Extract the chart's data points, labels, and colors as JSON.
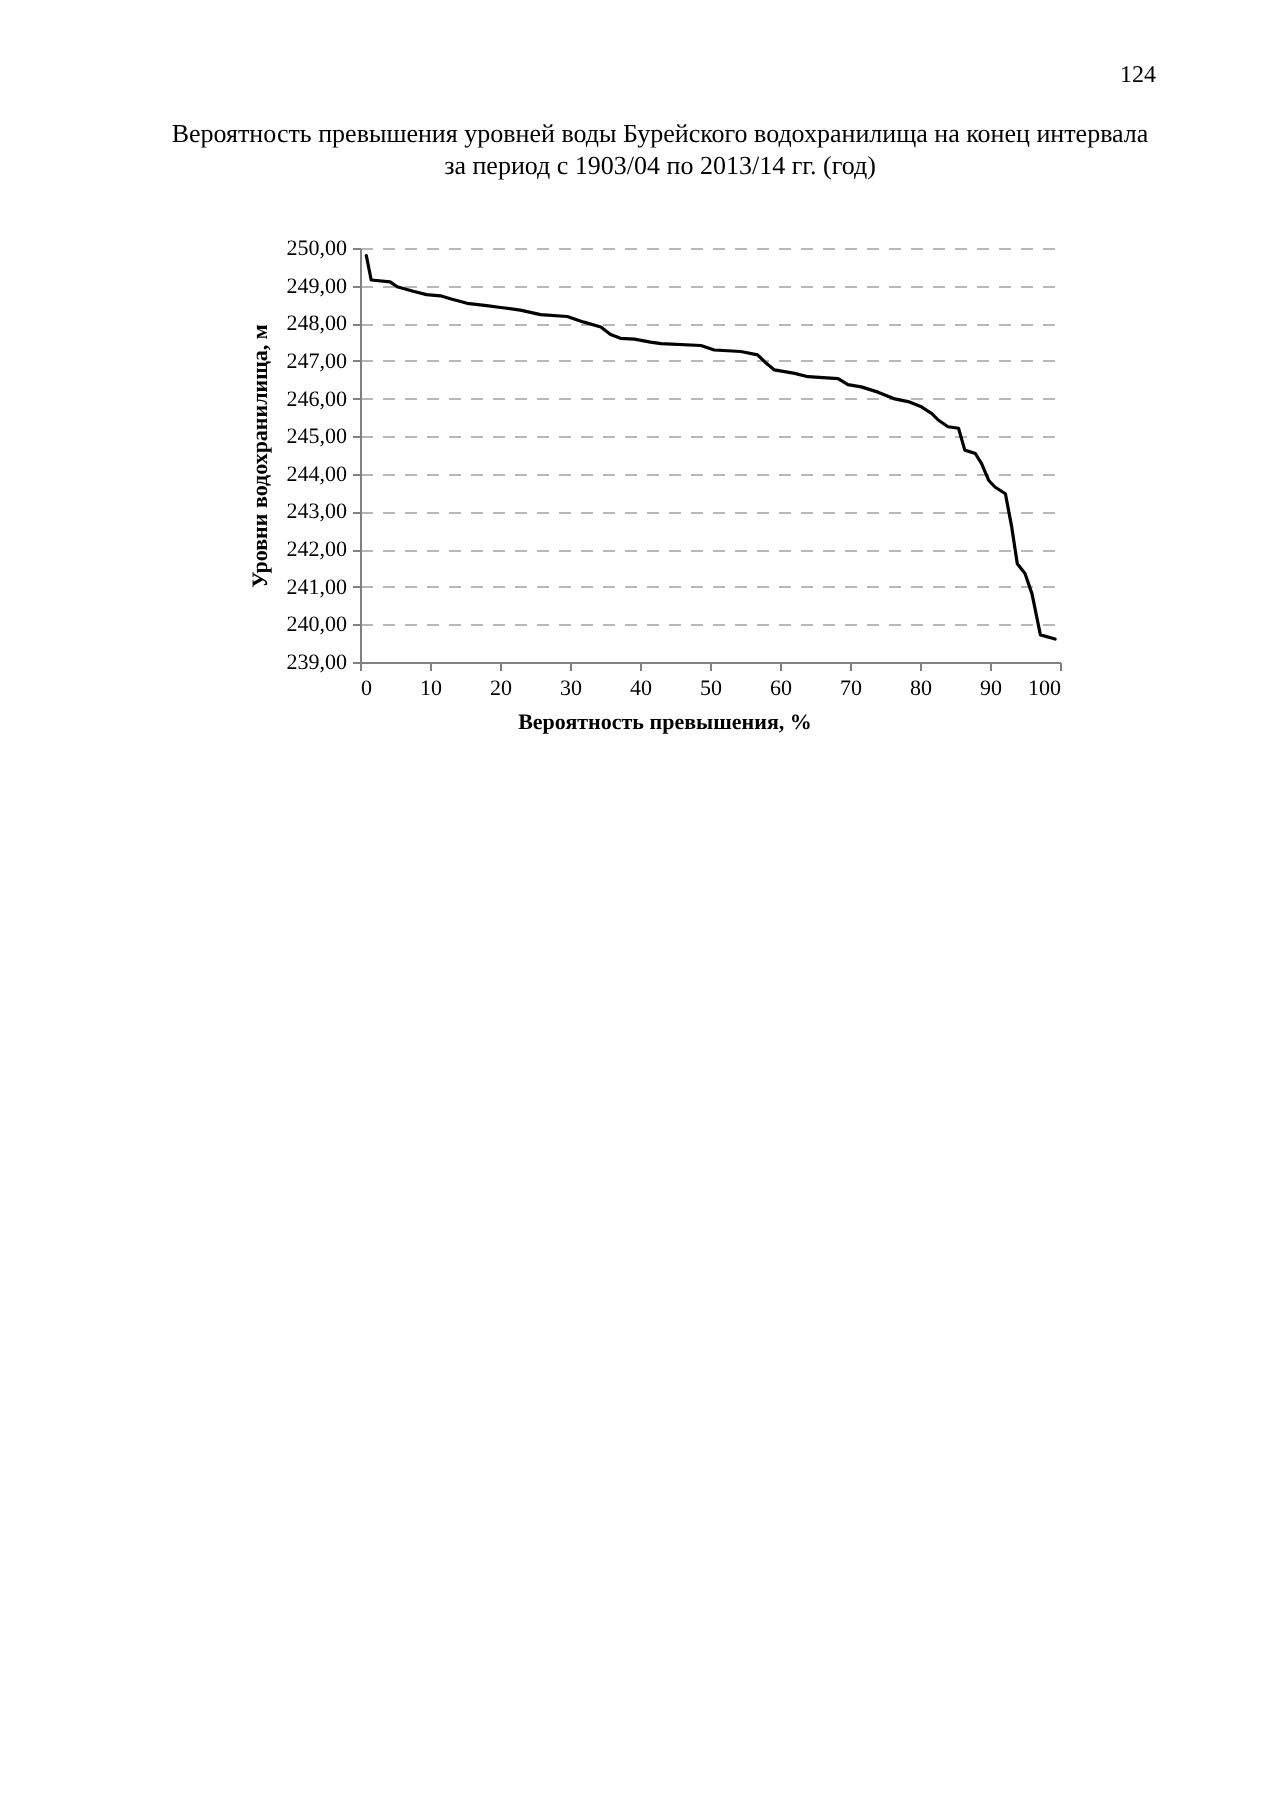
{
  "chart_data": {
    "type": "line",
    "title": "Вероятность превышения уровней воды Бурейского водохранилища на конец интервала\nза период с 1903/04 по 2013/14 гг. (год)",
    "xlabel": "Вероятность превышения, %",
    "ylabel": "Уровни водохранилища, м",
    "annotations": [
      "124"
    ],
    "x": [
      0.9,
      1.6,
      4.3,
      5.3,
      7.6,
      9.5,
      11.5,
      12.9,
      15.3,
      18.1,
      20.1,
      22.9,
      25.8,
      29.6,
      32.0,
      34.4,
      35.8,
      37.2,
      39.2,
      41.5,
      43.0,
      48.7,
      50.6,
      54.4,
      56.8,
      57.8,
      59.2,
      62.1,
      64.0,
      68.3,
      69.7,
      71.6,
      74.0,
      76.4,
      78.3,
      80.2,
      81.7,
      82.6,
      84.0,
      85.5,
      86.4,
      87.9,
      88.8,
      89.8,
      90.7,
      92.2,
      93.1,
      93.9,
      95.0,
      96.0,
      97.2,
      99.3
    ],
    "values": [
      249.8,
      249.15,
      249.1,
      248.97,
      248.85,
      248.76,
      248.73,
      248.65,
      248.53,
      248.47,
      248.42,
      248.35,
      248.23,
      248.18,
      248.03,
      247.9,
      247.7,
      247.6,
      247.58,
      247.5,
      247.46,
      247.41,
      247.29,
      247.25,
      247.16,
      246.98,
      246.76,
      246.67,
      246.58,
      246.53,
      246.37,
      246.31,
      246.17,
      245.99,
      245.92,
      245.78,
      245.6,
      245.43,
      245.25,
      245.21,
      244.63,
      244.54,
      244.27,
      243.83,
      243.65,
      243.47,
      242.59,
      241.61,
      241.35,
      240.81,
      239.72,
      239.61
    ],
    "color": "#000000",
    "xlim": [
      0,
      100
    ],
    "xticks": [
      0,
      10,
      20,
      30,
      40,
      50,
      60,
      70,
      80,
      90,
      100
    ],
    "ylim": [
      239,
      250
    ],
    "yticks": [
      {
        "value": 239,
        "label": "239,00"
      },
      {
        "value": 240,
        "label": "240,00"
      },
      {
        "value": 241,
        "label": "241,00"
      },
      {
        "value": 242,
        "label": "242,00"
      },
      {
        "value": 243,
        "label": "243,00"
      },
      {
        "value": 244,
        "label": "244,00"
      },
      {
        "value": 245,
        "label": "245,00"
      },
      {
        "value": 246,
        "label": "246,00"
      },
      {
        "value": 247,
        "label": "247,00"
      },
      {
        "value": 248,
        "label": "248,00"
      },
      {
        "value": 249,
        "label": "249,00"
      },
      {
        "value": 250,
        "label": "250,00"
      }
    ],
    "grid": "y"
  }
}
